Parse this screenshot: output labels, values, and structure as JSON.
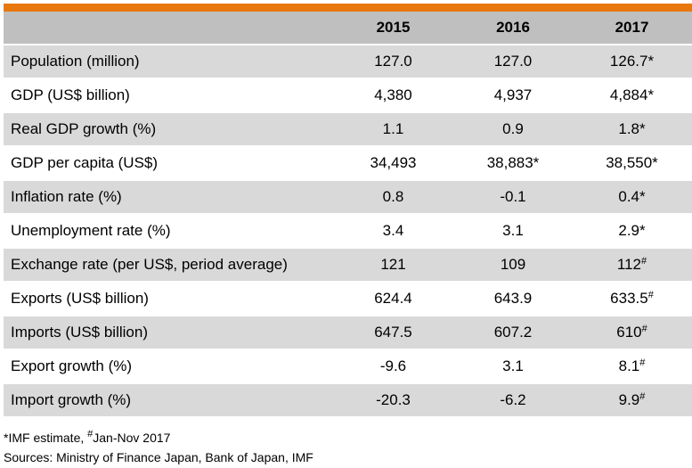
{
  "colors": {
    "accent": "#e8780e",
    "shade": "#d9d9d9",
    "header": "#bfbfbf",
    "white": "#ffffff"
  },
  "table": {
    "header": {
      "label": "",
      "years": [
        "2015",
        "2016",
        "2017"
      ]
    },
    "rows": [
      {
        "label": "Population (million)",
        "values": [
          {
            "v": "127.0",
            "m": ""
          },
          {
            "v": "127.0",
            "m": ""
          },
          {
            "v": "126.7*",
            "m": ""
          }
        ]
      },
      {
        "label": "GDP (US$ billion)",
        "values": [
          {
            "v": "4,380",
            "m": ""
          },
          {
            "v": "4,937",
            "m": ""
          },
          {
            "v": "4,884*",
            "m": ""
          }
        ]
      },
      {
        "label": "Real GDP growth (%)",
        "values": [
          {
            "v": "1.1",
            "m": ""
          },
          {
            "v": "0.9",
            "m": ""
          },
          {
            "v": "1.8*",
            "m": ""
          }
        ]
      },
      {
        "label": "GDP per capita (US$)",
        "values": [
          {
            "v": "34,493",
            "m": ""
          },
          {
            "v": "38,883*",
            "m": ""
          },
          {
            "v": "38,550*",
            "m": ""
          }
        ]
      },
      {
        "label": "Inflation rate (%)",
        "values": [
          {
            "v": "0.8",
            "m": ""
          },
          {
            "v": "-0.1",
            "m": ""
          },
          {
            "v": "0.4*",
            "m": ""
          }
        ]
      },
      {
        "label": "Unemployment rate (%)",
        "values": [
          {
            "v": "3.4",
            "m": ""
          },
          {
            "v": "3.1",
            "m": ""
          },
          {
            "v": "2.9*",
            "m": ""
          }
        ]
      },
      {
        "label": "Exchange rate (per US$, period average)",
        "values": [
          {
            "v": "121",
            "m": ""
          },
          {
            "v": "109",
            "m": ""
          },
          {
            "v": "112",
            "m": "#"
          }
        ]
      },
      {
        "label": "Exports (US$ billion)",
        "values": [
          {
            "v": "624.4",
            "m": ""
          },
          {
            "v": "643.9",
            "m": ""
          },
          {
            "v": "633.5",
            "m": "#"
          }
        ]
      },
      {
        "label": "Imports (US$ billion)",
        "values": [
          {
            "v": "647.5",
            "m": ""
          },
          {
            "v": "607.2",
            "m": ""
          },
          {
            "v": "610",
            "m": "#"
          }
        ]
      },
      {
        "label": "Export growth (%)",
        "values": [
          {
            "v": "-9.6",
            "m": ""
          },
          {
            "v": "3.1",
            "m": ""
          },
          {
            "v": "8.1",
            "m": "#"
          }
        ]
      },
      {
        "label": "Import growth (%)",
        "values": [
          {
            "v": "-20.3",
            "m": ""
          },
          {
            "v": "-6.2",
            "m": ""
          },
          {
            "v": "9.9",
            "m": "#"
          }
        ]
      }
    ]
  },
  "footnotes": {
    "estimate_prefix": "*IMF estimate, ",
    "hash_mark": "#",
    "estimate_suffix": "Jan-Nov 2017",
    "sources": "Sources: Ministry of Finance Japan, Bank of Japan, IMF"
  }
}
